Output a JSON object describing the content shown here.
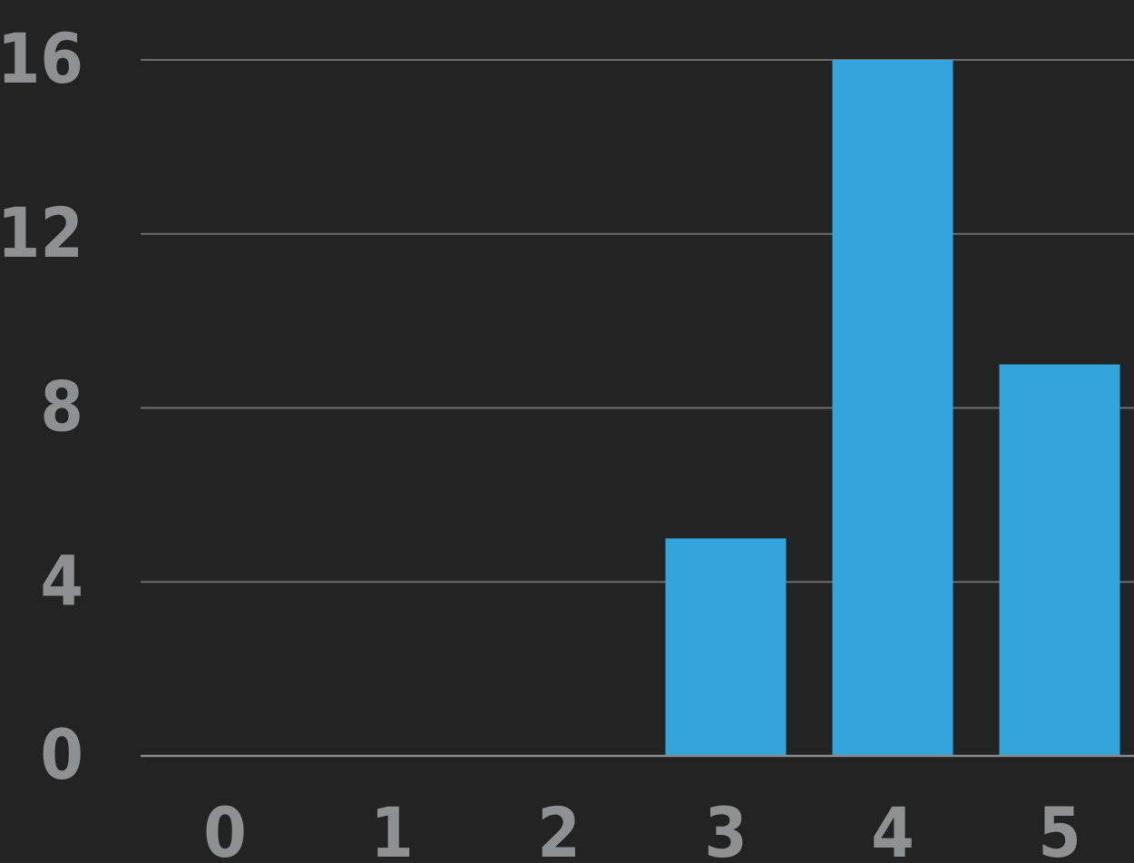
{
  "chart_data": {
    "type": "bar",
    "title": "",
    "xlabel": "",
    "ylabel": "",
    "categories": [
      "0",
      "1",
      "2",
      "3",
      "4",
      "5"
    ],
    "values": [
      0,
      0,
      0,
      5,
      16,
      9
    ],
    "ylim": [
      0,
      16
    ],
    "yticks": [
      "0",
      "4",
      "8",
      "12",
      "16"
    ],
    "grid": true,
    "colors": {
      "background": "#232323",
      "bar": "#34a5dc",
      "grid": "#6c6c6c",
      "tick_text": "#8e9092"
    }
  }
}
